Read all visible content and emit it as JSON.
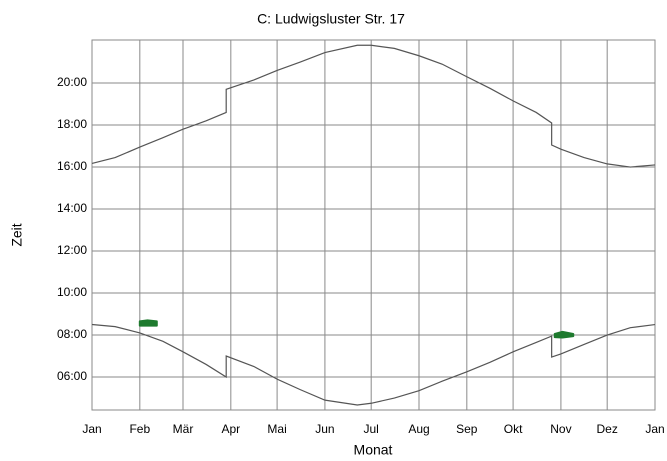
{
  "chart_data": {
    "type": "line",
    "title": "C: Ludwigsluster Str. 17",
    "x_label": "Monat",
    "y_label": "Zeit",
    "x": [
      0,
      15,
      31,
      46,
      59,
      74,
      87,
      87,
      105,
      120,
      135,
      151,
      172,
      181,
      196,
      212,
      227,
      243,
      258,
      273,
      288,
      298,
      298,
      304,
      319,
      334,
      349,
      365
    ],
    "series": [
      {
        "color": "#555555",
        "values": [
          16.17,
          16.45,
          16.95,
          17.4,
          17.8,
          18.2,
          18.6,
          19.7,
          20.15,
          20.6,
          21.0,
          21.45,
          21.8,
          21.8,
          21.65,
          21.3,
          20.9,
          20.3,
          19.75,
          19.15,
          18.6,
          18.1,
          17.05,
          16.85,
          16.45,
          16.15,
          16.0,
          16.1
        ]
      },
      {
        "color": "#555555",
        "values": [
          8.5,
          8.4,
          8.1,
          7.7,
          7.2,
          6.6,
          6.0,
          7.0,
          6.5,
          5.9,
          5.4,
          4.9,
          4.67,
          4.75,
          5.0,
          5.35,
          5.8,
          6.25,
          6.7,
          7.2,
          7.65,
          7.95,
          6.95,
          7.1,
          7.55,
          8.0,
          8.35,
          8.5
        ]
      }
    ],
    "shade": [
      {
        "color": "#1e7a2e",
        "x": [
          31,
          36,
          42
        ],
        "low": [
          8.45,
          8.45,
          8.45
        ],
        "high": [
          8.65,
          8.7,
          8.65
        ]
      },
      {
        "color": "#1e7a2e",
        "x": [
          300,
          305,
          312
        ],
        "low": [
          7.9,
          7.88,
          7.95
        ],
        "high": [
          8.05,
          8.15,
          8.05
        ]
      }
    ],
    "xlim": [
      0,
      365
    ],
    "xticks": [
      {
        "value": 0,
        "label": "Jan"
      },
      {
        "value": 31,
        "label": "Feb"
      },
      {
        "value": 59,
        "label": "Mär"
      },
      {
        "value": 90,
        "label": "Apr"
      },
      {
        "value": 120,
        "label": "Mai"
      },
      {
        "value": 151,
        "label": "Jun"
      },
      {
        "value": 181,
        "label": "Jul"
      },
      {
        "value": 212,
        "label": "Aug"
      },
      {
        "value": 243,
        "label": "Sep"
      },
      {
        "value": 273,
        "label": "Okt"
      },
      {
        "value": 304,
        "label": "Nov"
      },
      {
        "value": 334,
        "label": "Dez"
      },
      {
        "value": 365,
        "label": "Jan"
      }
    ],
    "ylim": [
      4.43,
      22.05
    ],
    "yticks": [
      {
        "value": 6,
        "label": "06:00"
      },
      {
        "value": 8,
        "label": "08:00"
      },
      {
        "value": 10,
        "label": "10:00"
      },
      {
        "value": 12,
        "label": "12:00"
      },
      {
        "value": 14,
        "label": "14:00"
      },
      {
        "value": 16,
        "label": "16:00"
      },
      {
        "value": 18,
        "label": "18:00"
      },
      {
        "value": 20,
        "label": "20:00"
      }
    ],
    "grid": true
  }
}
